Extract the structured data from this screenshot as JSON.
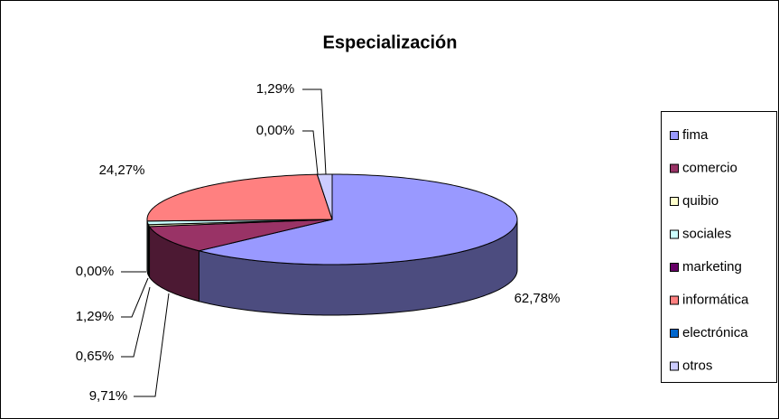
{
  "chart_data": {
    "type": "pie3d",
    "title": "Especialización",
    "categories": [
      "fima",
      "comercio",
      "quibio",
      "sociales",
      "marketing",
      "informática",
      "electrónica",
      "otros"
    ],
    "values": [
      62.78,
      9.71,
      0.65,
      1.29,
      0.0,
      24.27,
      0.0,
      1.29
    ],
    "value_labels": [
      "62,78%",
      "9,71%",
      "0,65%",
      "1,29%",
      "0,00%",
      "24,27%",
      "0,00%",
      "1,29%"
    ],
    "colors": [
      "#9999ff",
      "#993366",
      "#ffffcc",
      "#ccffff",
      "#660066",
      "#ff8080",
      "#0066cc",
      "#ccccff"
    ],
    "legend": "right"
  }
}
